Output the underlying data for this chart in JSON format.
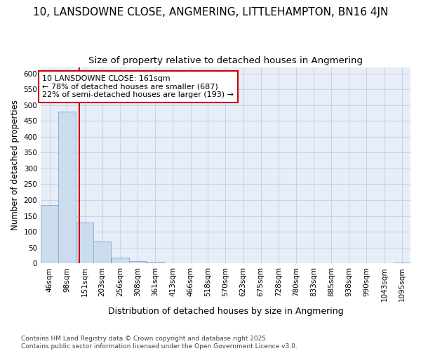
{
  "title1": "10, LANSDOWNE CLOSE, ANGMERING, LITTLEHAMPTON, BN16 4JN",
  "title2": "Size of property relative to detached houses in Angmering",
  "xlabel": "Distribution of detached houses by size in Angmering",
  "ylabel": "Number of detached properties",
  "bar_edges": [
    46,
    98,
    151,
    203,
    256,
    308,
    361,
    413,
    466,
    518,
    570,
    623,
    675,
    728,
    780,
    833,
    885,
    938,
    990,
    1043,
    1095
  ],
  "bar_heights": [
    184,
    480,
    130,
    70,
    18,
    6,
    4,
    1,
    0,
    0,
    0,
    0,
    0,
    0,
    0,
    0,
    0,
    0,
    0,
    0,
    2
  ],
  "bar_color": "#ccdcef",
  "bar_edge_color": "#8ab0d0",
  "plot_bg_color": "#e8eef8",
  "fig_bg_color": "#ffffff",
  "grid_color": "#c8d4e8",
  "vline_x": 161,
  "vline_color": "#cc0000",
  "annotation_text": "10 LANSDOWNE CLOSE: 161sqm\n← 78% of detached houses are smaller (687)\n22% of semi-detached houses are larger (193) →",
  "annotation_fontsize": 8,
  "footnote": "Contains HM Land Registry data © Crown copyright and database right 2025.\nContains public sector information licensed under the Open Government Licence v3.0.",
  "ylim": [
    0,
    620
  ],
  "yticks": [
    0,
    50,
    100,
    150,
    200,
    250,
    300,
    350,
    400,
    450,
    500,
    550,
    600
  ],
  "title1_fontsize": 11,
  "title2_fontsize": 9.5,
  "ylabel_fontsize": 8.5,
  "xlabel_fontsize": 9,
  "tick_fontsize": 7.5,
  "footnote_fontsize": 6.5
}
